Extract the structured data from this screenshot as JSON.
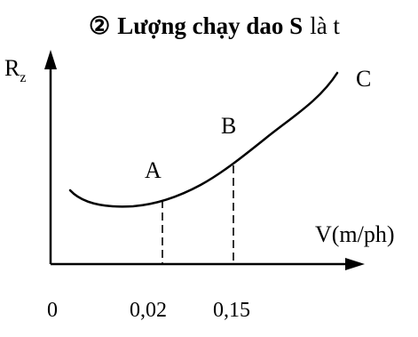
{
  "heading": {
    "symbol": "②",
    "bold_text": "Lượng chạy dao S",
    "regular_text": "là t"
  },
  "diagram": {
    "y_axis_label_main": "R",
    "y_axis_label_sub": "z",
    "x_axis_label": "V(m/ph)",
    "origin_label": "0",
    "tick_labels": [
      "0,02",
      "0,15"
    ],
    "point_labels": {
      "A": "A",
      "B": "B",
      "C": "C"
    }
  }
}
